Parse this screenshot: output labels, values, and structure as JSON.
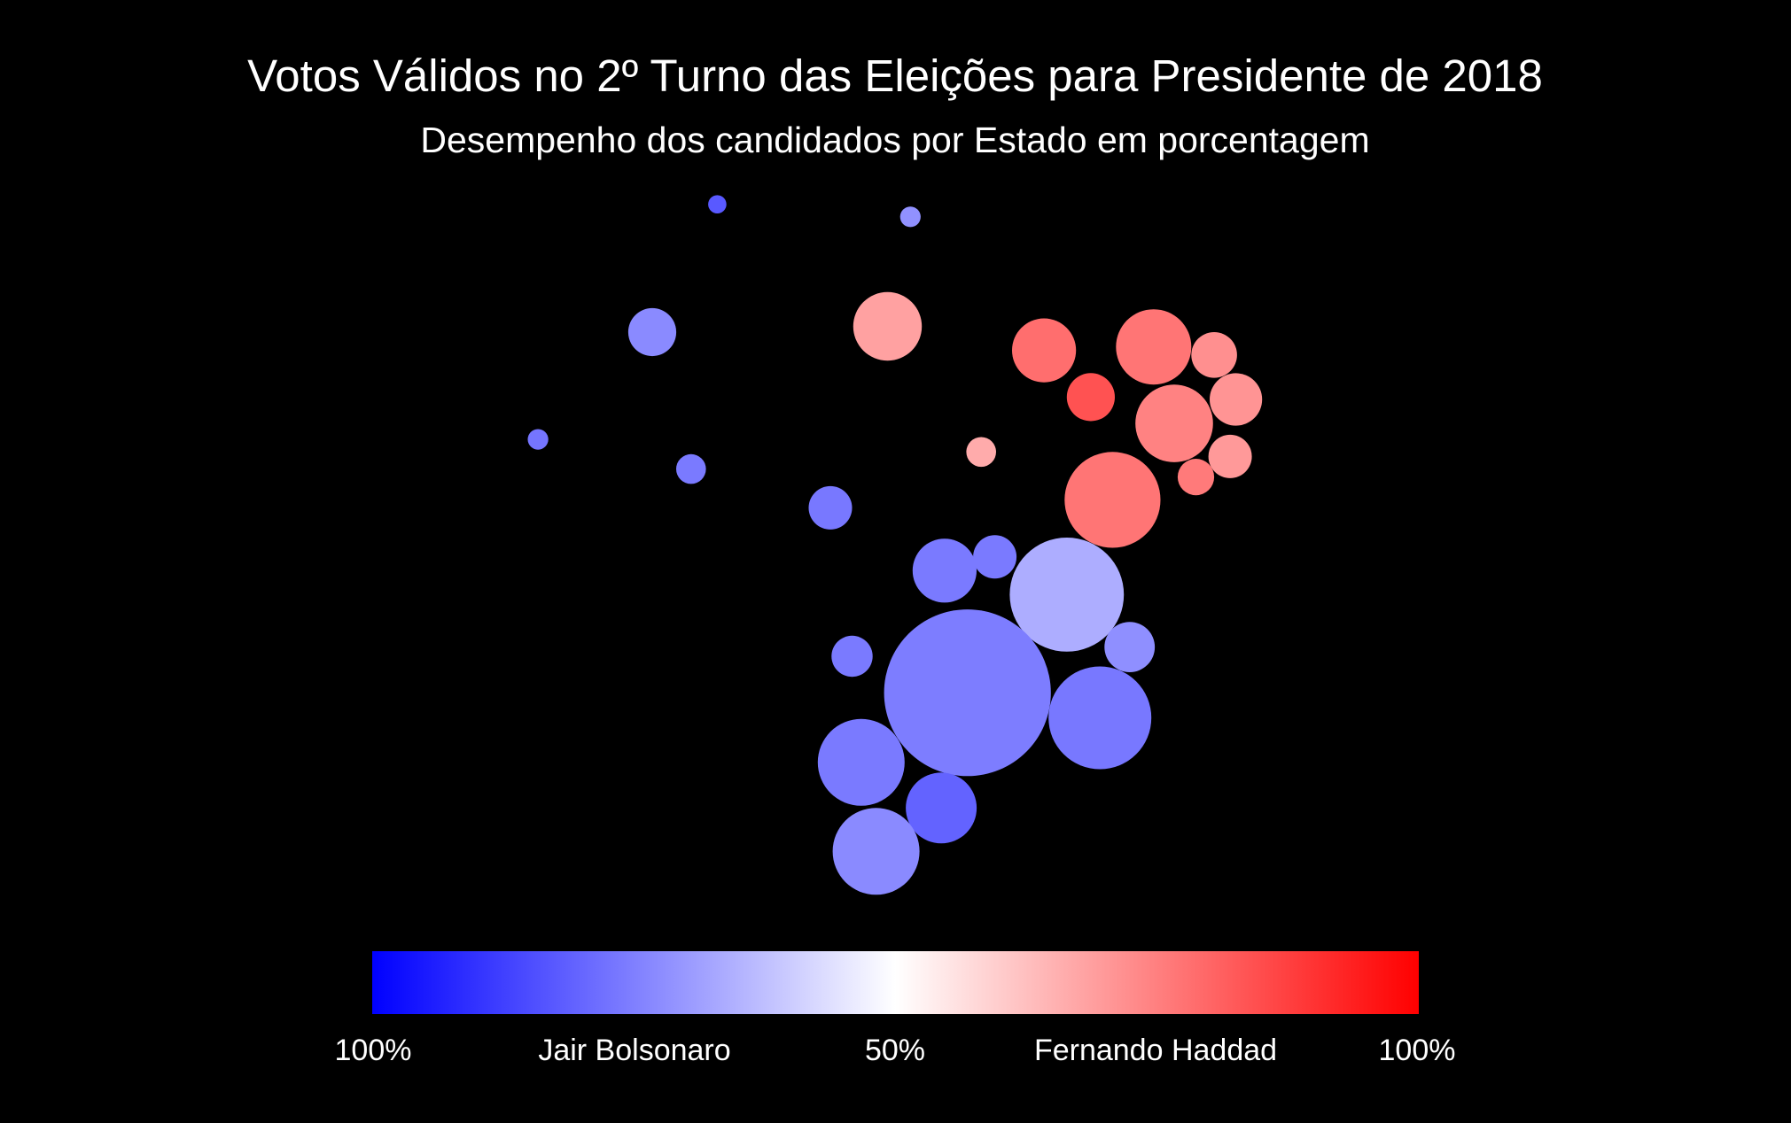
{
  "chart_data": {
    "type": "bubble-map",
    "title": "Votos Válidos no 2º Turno das Eleições para Presidente de 2018",
    "subtitle": "Desempenho dos candidados por Estado em porcentagem",
    "legend": {
      "placement": "bottom",
      "scale_min_color": "#0000FF",
      "scale_mid_color": "#FFFFFF",
      "scale_max_color": "#FF0000",
      "labels": [
        "100%",
        "Jair Bolsonaro",
        "50%",
        "Fernando Haddad",
        "100%"
      ]
    },
    "grid": false,
    "series": [
      {
        "x": 628,
        "y": 179,
        "size": 8,
        "haddad_share": 17.5
      },
      {
        "x": 797,
        "y": 190,
        "size": 9,
        "haddad_share": 28.5
      },
      {
        "x": 571,
        "y": 291,
        "size": 21,
        "haddad_share": 27.0
      },
      {
        "x": 777,
        "y": 286,
        "size": 30,
        "haddad_share": 68.5
      },
      {
        "x": 914,
        "y": 307,
        "size": 28,
        "haddad_share": 78.5
      },
      {
        "x": 1010,
        "y": 304,
        "size": 33,
        "haddad_share": 77.0
      },
      {
        "x": 1063,
        "y": 311,
        "size": 20,
        "haddad_share": 72.0
      },
      {
        "x": 1082,
        "y": 350,
        "size": 23,
        "haddad_share": 71.0
      },
      {
        "x": 955,
        "y": 348,
        "size": 21,
        "haddad_share": 84.0
      },
      {
        "x": 1028,
        "y": 371,
        "size": 34,
        "haddad_share": 74.5
      },
      {
        "x": 1077,
        "y": 400,
        "size": 19,
        "haddad_share": 70.0
      },
      {
        "x": 1047,
        "y": 418,
        "size": 16,
        "haddad_share": 76.0
      },
      {
        "x": 471,
        "y": 385,
        "size": 9,
        "haddad_share": 23.0
      },
      {
        "x": 605,
        "y": 411,
        "size": 13,
        "haddad_share": 24.0
      },
      {
        "x": 859,
        "y": 396,
        "size": 13,
        "haddad_share": 66.5
      },
      {
        "x": 974,
        "y": 438,
        "size": 42,
        "haddad_share": 77.0
      },
      {
        "x": 727,
        "y": 445,
        "size": 19,
        "haddad_share": 23.5
      },
      {
        "x": 827,
        "y": 500,
        "size": 28,
        "haddad_share": 24.0
      },
      {
        "x": 871,
        "y": 488,
        "size": 19,
        "haddad_share": 24.0
      },
      {
        "x": 934,
        "y": 521,
        "size": 50,
        "haddad_share": 34.0
      },
      {
        "x": 989,
        "y": 567,
        "size": 22,
        "haddad_share": 28.0
      },
      {
        "x": 746,
        "y": 575,
        "size": 18,
        "haddad_share": 24.0
      },
      {
        "x": 847,
        "y": 607,
        "size": 73,
        "haddad_share": 24.5
      },
      {
        "x": 963,
        "y": 629,
        "size": 45,
        "haddad_share": 23.5
      },
      {
        "x": 754,
        "y": 668,
        "size": 38,
        "haddad_share": 24.0
      },
      {
        "x": 824,
        "y": 708,
        "size": 31,
        "haddad_share": 19.5
      },
      {
        "x": 767,
        "y": 746,
        "size": 38,
        "haddad_share": 27.0
      }
    ]
  }
}
